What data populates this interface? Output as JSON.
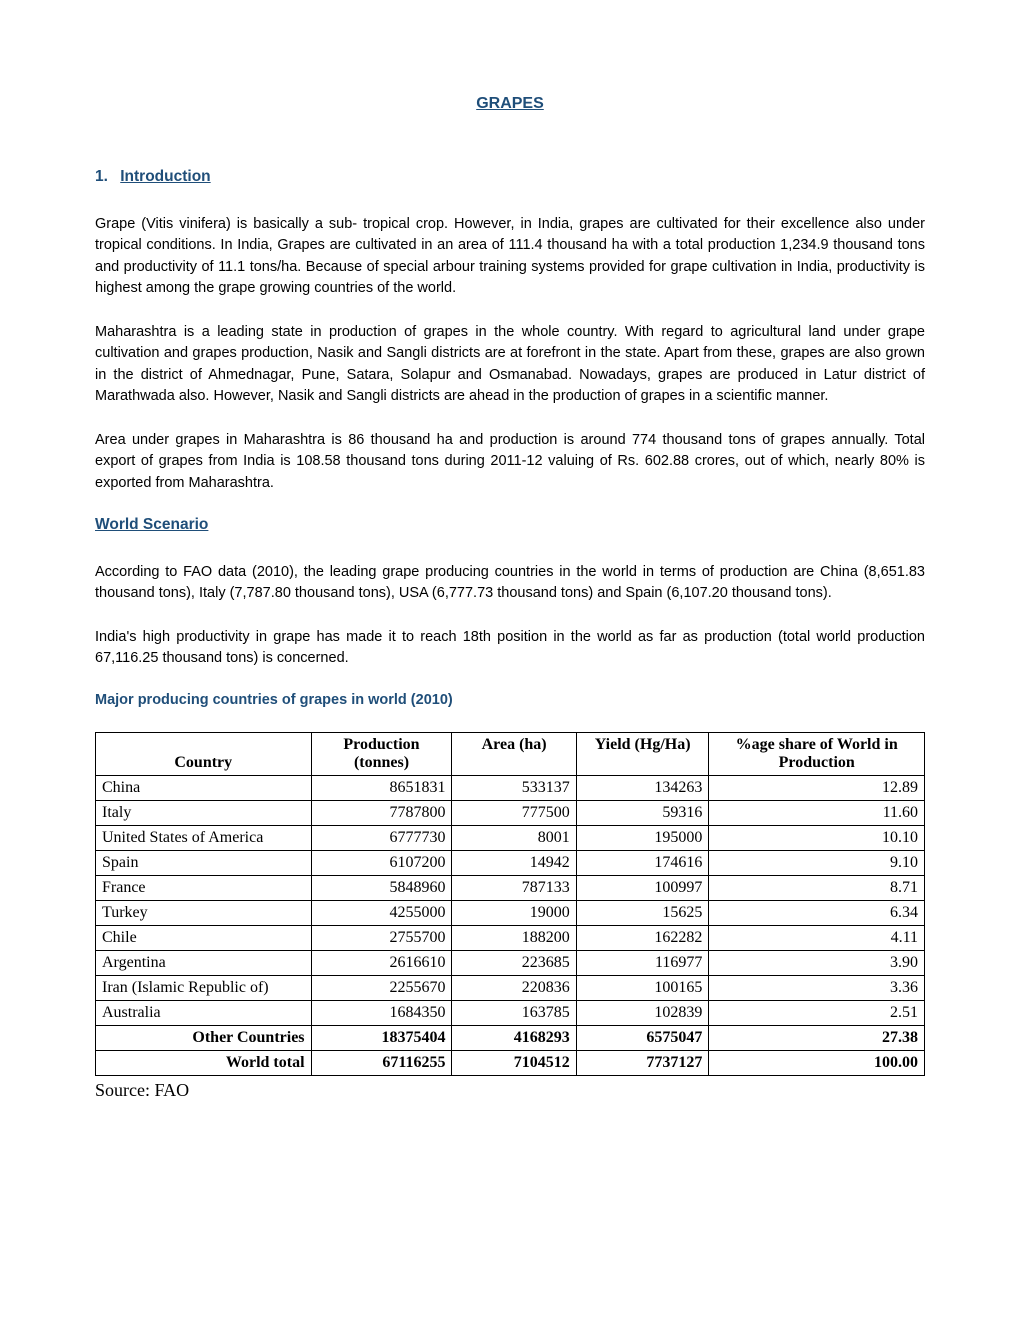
{
  "colors": {
    "heading": "#1f4e79",
    "text": "#000000",
    "background": "#ffffff",
    "tableBorder": "#000000"
  },
  "typography": {
    "bodyFont": "Arial",
    "tableFont": "Times New Roman",
    "titleSize": 16,
    "headingSize": 15.5,
    "bodySize": 14.5,
    "tableSize": 16,
    "sourceSize": 18
  },
  "title": "GRAPES",
  "sections": {
    "intro": {
      "number": "1.",
      "label": "Introduction",
      "paragraphs": [
        "Grape (Vitis vinifera) is basically a sub- tropical crop. However, in India, grapes are cultivated for their excellence also under tropical conditions. In India, Grapes are cultivated in an area of 111.4 thousand ha with a total production 1,234.9 thousand tons and productivity of 11.1 tons/ha. Because of special arbour training systems provided for grape cultivation in India, productivity is highest among the grape growing countries of the world.",
        "Maharashtra is a leading state in production of grapes in the whole country. With regard to agricultural land under grape cultivation and grapes production, Nasik and Sangli districts are at forefront in the state. Apart from these, grapes are also grown in the district of Ahmednagar, Pune, Satara, Solapur and Osmanabad. Nowadays, grapes are produced in Latur district of Marathwada also. However, Nasik and Sangli districts are ahead in the production of grapes in a scientific manner.",
        "Area under grapes in Maharashtra is 86 thousand ha and production is around 774 thousand tons of grapes annually. Total export of grapes from India is 108.58 thousand tons during 2011-12 valuing of Rs. 602.88 crores, out of which, nearly 80% is exported from Maharashtra."
      ]
    },
    "world": {
      "label": "World Scenario",
      "paragraphs": [
        "According to FAO data (2010), the leading grape producing countries in the world in terms of production are China (8,651.83 thousand tons), Italy (7,787.80 thousand tons), USA (6,777.73 thousand tons) and Spain (6,107.20 thousand tons).",
        "India's high productivity in grape has made it to reach 18th position in the world as far as production (total world production 67,116.25 thousand tons) is concerned."
      ]
    }
  },
  "table": {
    "caption": "Major producing countries of grapes in world (2010)",
    "columns": [
      {
        "label": "Country",
        "align": "center"
      },
      {
        "label": "Production (tonnes)",
        "align": "center"
      },
      {
        "label": "Area (ha)",
        "align": "center"
      },
      {
        "label": "Yield (Hg/Ha)",
        "align": "center"
      },
      {
        "label": "%age share of World in Production",
        "align": "center"
      }
    ],
    "rows": [
      {
        "country": "China",
        "production": "8651831",
        "area": "533137",
        "yield": "134263",
        "share": "12.89",
        "summary": false
      },
      {
        "country": "Italy",
        "production": "7787800",
        "area": "777500",
        "yield": "59316",
        "share": "11.60",
        "summary": false
      },
      {
        "country": "United States of America",
        "production": "6777730",
        "area": "8001",
        "yield": "195000",
        "share": "10.10",
        "summary": false
      },
      {
        "country": "Spain",
        "production": "6107200",
        "area": "14942",
        "yield": "174616",
        "share": "9.10",
        "summary": false
      },
      {
        "country": "France",
        "production": "5848960",
        "area": "787133",
        "yield": "100997",
        "share": "8.71",
        "summary": false
      },
      {
        "country": "Turkey",
        "production": "4255000",
        "area": "19000",
        "yield": "15625",
        "share": "6.34",
        "summary": false
      },
      {
        "country": "Chile",
        "production": "2755700",
        "area": "188200",
        "yield": "162282",
        "share": "4.11",
        "summary": false
      },
      {
        "country": "Argentina",
        "production": "2616610",
        "area": "223685",
        "yield": "116977",
        "share": "3.90",
        "summary": false
      },
      {
        "country": "Iran (Islamic Republic of)",
        "production": "2255670",
        "area": "220836",
        "yield": "100165",
        "share": "3.36",
        "summary": false
      },
      {
        "country": "Australia",
        "production": "1684350",
        "area": "163785",
        "yield": "102839",
        "share": "2.51",
        "summary": false
      },
      {
        "country": "Other Countries",
        "production": "18375404",
        "area": "4168293",
        "yield": "6575047",
        "share": "27.38",
        "summary": true
      },
      {
        "country": "World total",
        "production": "67116255",
        "area": "7104512",
        "yield": "7737127",
        "share": "100.00",
        "summary": true
      }
    ],
    "source": "Source: FAO"
  }
}
